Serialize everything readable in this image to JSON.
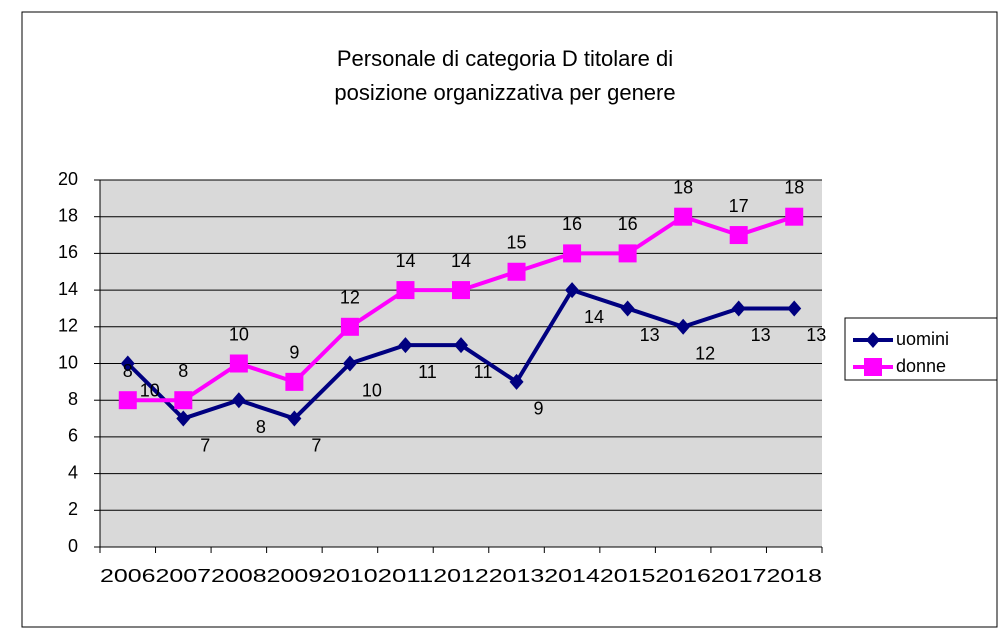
{
  "chart_data": {
    "type": "line",
    "title": "Personale di categoria D titolare di posizione organizzativa per genere",
    "categories": [
      "2006",
      "2007",
      "2008",
      "2009",
      "2010",
      "2011",
      "2012",
      "2013",
      "2014",
      "2015",
      "2016",
      "2017",
      "2018"
    ],
    "series": [
      {
        "name": "uomini",
        "color": "#000080",
        "values": [
          10,
          7,
          8,
          7,
          10,
          11,
          11,
          9,
          14,
          13,
          12,
          13,
          13
        ]
      },
      {
        "name": "donne",
        "color": "#ff00ff",
        "values": [
          8,
          8,
          10,
          9,
          12,
          14,
          14,
          15,
          16,
          16,
          18,
          17,
          18
        ]
      }
    ],
    "ylim": [
      0,
      20
    ],
    "yticks": [
      0,
      2,
      4,
      6,
      8,
      10,
      12,
      14,
      16,
      18,
      20
    ],
    "grid": true,
    "legend": "right"
  }
}
